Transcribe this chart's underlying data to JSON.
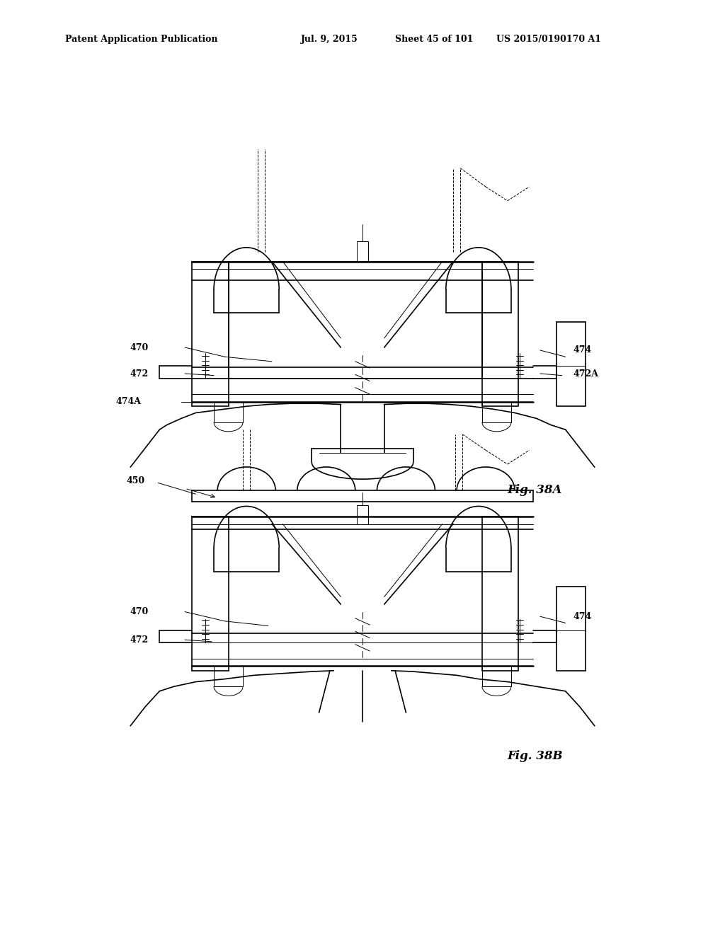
{
  "background_color": "#ffffff",
  "header_text": "Patent Application Publication",
  "header_date": "Jul. 9, 2015",
  "header_sheet": "Sheet 45 of 101",
  "header_patent": "US 2015/0190170 A1",
  "fig_38a_label": "Fig. 38A",
  "fig_38b_label": "Fig. 38B",
  "line_color": "#000000",
  "text_color": "#000000"
}
